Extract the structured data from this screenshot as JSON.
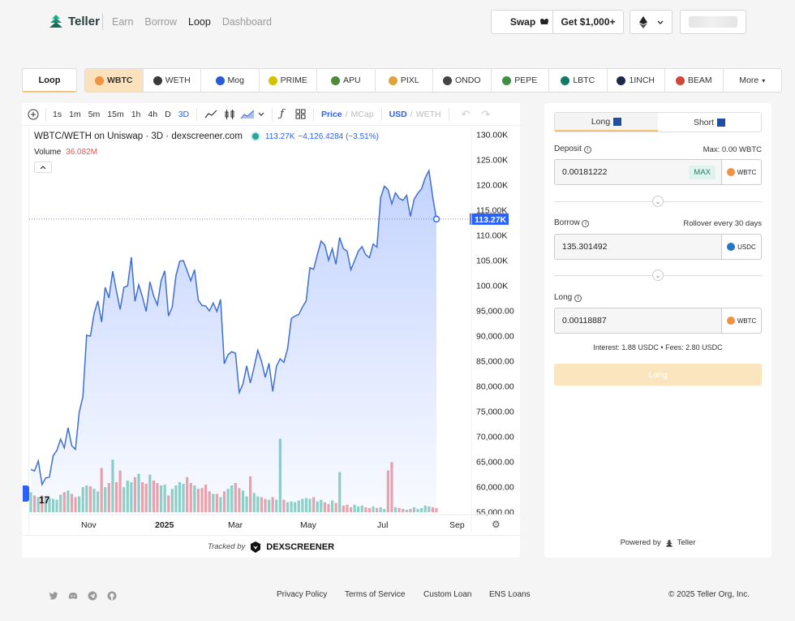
{
  "header": {
    "logo_text": "Teller",
    "nav": [
      "Earn",
      "Borrow",
      "Loop",
      "Dashboard"
    ],
    "active_nav": "Loop",
    "swap_label": "Swap",
    "get_label": "Get $1,000+"
  },
  "tokens": {
    "loop_tab": "Loop",
    "items": [
      {
        "label": "WBTC",
        "color": "#f09242"
      },
      {
        "label": "WETH",
        "color": "#3a3a3a"
      },
      {
        "label": "Mog",
        "color": "#2a5bd7"
      },
      {
        "label": "PRIME",
        "color": "#d7c000"
      },
      {
        "label": "APU",
        "color": "#4d8a3a"
      },
      {
        "label": "PIXL",
        "color": "#e0a23a"
      },
      {
        "label": "ONDO",
        "color": "#444444"
      },
      {
        "label": "PEPE",
        "color": "#3f8f3f"
      },
      {
        "label": "LBTC",
        "color": "#127a66"
      },
      {
        "label": "1INCH",
        "color": "#1b2a4a"
      },
      {
        "label": "BEAM",
        "color": "#d4453a"
      }
    ],
    "more_label": "More"
  },
  "toolbar": {
    "intervals": [
      "1s",
      "1m",
      "5m",
      "15m",
      "1h",
      "4h",
      "D",
      "3D"
    ],
    "active_interval": "3D",
    "price": "Price",
    "mcap": "MCap",
    "usd": "USD",
    "weth": "WETH"
  },
  "chart_info": {
    "title": "WBTC/WETH on Uniswap · 3D · dexscreener.com",
    "last": "113.27K",
    "change": "−4,126.4284 (−3.51%)",
    "volume_label": "Volume",
    "volume_value": "36.082M",
    "price_tag": "113.27K",
    "tracked_by": "Tracked by",
    "dexscreener": "DEXSCREENER"
  },
  "chart_data": {
    "type": "area",
    "ylim": [
      55000,
      131000
    ],
    "y_ticks": [
      "130.00K",
      "125.00K",
      "120.00K",
      "115.00K",
      "110.00K",
      "105.00K",
      "100.00K",
      "95,000.00",
      "90,000.00",
      "85,000.00",
      "80,000.00",
      "75,000.00",
      "70,000.00",
      "65,000.00",
      "60,000.00",
      "55,000.00"
    ],
    "x_ticks": [
      "Nov",
      "2025",
      "Mar",
      "May",
      "Jul",
      "Sep"
    ],
    "prices": [
      63500,
      63200,
      65200,
      60500,
      61800,
      62000,
      66200,
      67300,
      69500,
      67800,
      71800,
      68200,
      67500,
      74800,
      78000,
      90200,
      90000,
      94500,
      97000,
      92800,
      99700,
      97600,
      102900,
      99000,
      95300,
      99700,
      100000,
      105700,
      96900,
      100200,
      97800,
      94900,
      100800,
      98000,
      96200,
      101000,
      103000,
      94000,
      95800,
      102000,
      104900,
      105000,
      103000,
      101000,
      103200,
      97200,
      96100,
      96000,
      95000,
      96600,
      94900,
      97300,
      84500,
      86300,
      86900,
      86600,
      78800,
      80500,
      84100,
      80700,
      83800,
      87200,
      85000,
      81800,
      84600,
      79000,
      84000,
      85500,
      84800,
      87500,
      93500,
      94000,
      94300,
      95800,
      97000,
      103600,
      103300,
      106200,
      108900,
      108100,
      105100,
      107400,
      104300,
      109600,
      107400,
      106900,
      103200,
      105000,
      106900,
      107800,
      106200,
      105600,
      108300,
      107700,
      117500,
      119800,
      119100,
      116300,
      118500,
      117400,
      117000,
      118000,
      113800,
      117200,
      118400,
      119300,
      121500,
      122900,
      117700,
      113270
    ],
    "volumes": [
      2.4,
      2.0,
      1.8,
      2.0,
      1.9,
      1.7,
      1.6,
      1.5,
      2.1,
      2.4,
      2.6,
      2.2,
      1.8,
      1.9,
      3.0,
      3.2,
      3.1,
      2.8,
      2.5,
      5.3,
      3.0,
      3.5,
      6.3,
      3.6,
      5.0,
      3.0,
      3.8,
      3.6,
      4.2,
      4.6,
      3.6,
      3.4,
      4.5,
      3.8,
      3.5,
      3.2,
      3.3,
      2.0,
      2.8,
      3.2,
      3.6,
      3.4,
      4.2,
      3.5,
      3.2,
      2.8,
      2.9,
      3.3,
      2.5,
      2.2,
      2.2,
      1.8,
      2.5,
      2.8,
      3.2,
      3.5,
      2.9,
      2.6,
      1.9,
      2.2,
      2.3,
      1.9,
      1.8,
      1.6,
      1.5,
      1.8,
      1.5,
      1.9,
      1.5,
      1.2,
      1.3,
      1.2,
      1.4,
      1.6,
      1.7,
      1.6,
      1.8,
      1.3,
      1.5,
      1.2,
      1.0,
      1.4,
      1.1,
      1.2,
      0.8,
      0.9,
      0.6,
      0.9,
      0.7,
      0.8,
      0.6,
      0.5,
      0.7,
      0.5,
      0.6,
      0.4,
      0.5,
      0.4,
      0.6,
      0.5,
      0.4,
      0.3,
      0.4,
      0.6,
      0.4,
      0.5,
      0.8,
      0.7,
      0.6,
      0.5
    ],
    "vol_max": 7.0,
    "vol_overrides": {
      "59": 4.3,
      "83": 4.8,
      "96": 5.0,
      "97": 6.0,
      "67": 8.8
    }
  },
  "form": {
    "long_label": "Long",
    "short_label": "Short",
    "deposit_label": "Deposit",
    "max_balance": "Max: 0.00 WBTC",
    "deposit_value": "0.00181222",
    "max_button": "MAX",
    "deposit_asset": "WBTC",
    "borrow_label": "Borrow",
    "rollover": "Rollover every 30 days",
    "borrow_value": "135.301492",
    "borrow_asset": "USDC",
    "long_amount_label": "Long",
    "long_value": "0.00118887",
    "long_asset": "WBTC",
    "interest_fees": "Interest: 1.88 USDC • Fees: 2.80 USDC",
    "cta": "Long",
    "powered_by": "Powered by",
    "powered_brand": "Teller"
  },
  "footer": {
    "links": [
      "Privacy Policy",
      "Terms of Service",
      "Custom Loan",
      "ENS Loans"
    ],
    "copyright": "© 2025 Teller Org, Inc."
  }
}
